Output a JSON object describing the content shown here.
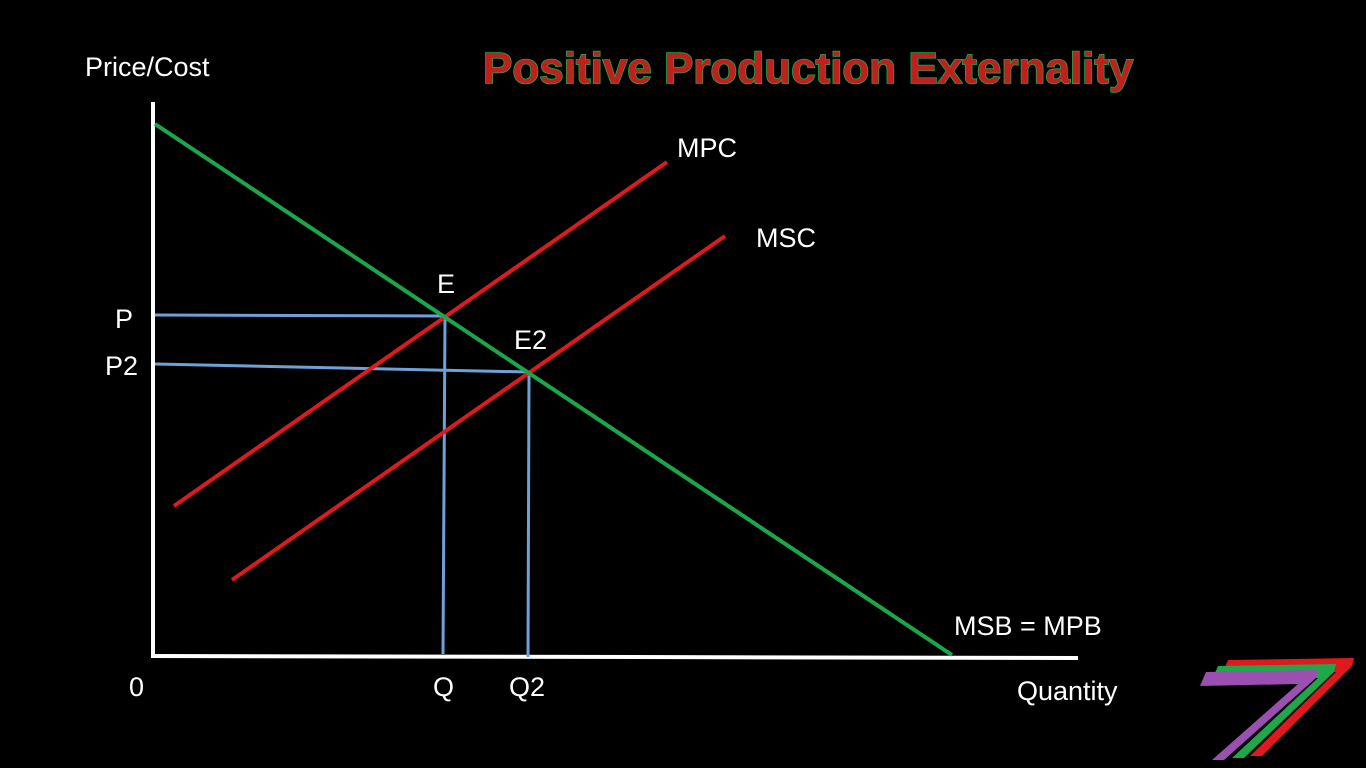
{
  "title": "Positive Production Externality",
  "axes": {
    "y_label": "Price/Cost",
    "x_label": "Quantity",
    "origin_label": "0"
  },
  "curves": {
    "mpc": "MPC",
    "msc": "MSC",
    "msb": "MSB = MPB"
  },
  "points": {
    "e": "E",
    "e2": "E2"
  },
  "prices": {
    "p": "P",
    "p2": "P2"
  },
  "quantities": {
    "q": "Q",
    "q2": "Q2"
  },
  "colors": {
    "background": "#000000",
    "axis": "#ffffff",
    "supply_curves": "#e0191f",
    "demand_curve": "#1da54a",
    "guide_lines": "#6fa0d8",
    "title_fill": "#c0201c",
    "title_outline": "#1fa84a",
    "logo_purple": "#9b4fb0",
    "logo_green": "#1fa84a",
    "logo_red": "#e0191f"
  },
  "logo": {
    "icon": "stylized-seven-logo-icon"
  }
}
